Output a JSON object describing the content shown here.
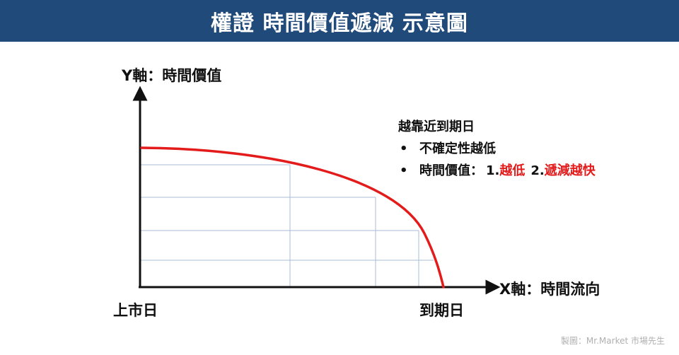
{
  "title": "權證 時間價值遞減 示意圖",
  "axes": {
    "y_label": "Y軸：時間價值",
    "x_label": "X軸：時間流向",
    "start_label": "上市日",
    "end_label": "到期日"
  },
  "note": {
    "heading": "越靠近到期日",
    "bullet1": "不確定性越低",
    "bullet2_prefix": "時間價值：",
    "bullet2_n1": "1.",
    "bullet2_r1": "越低",
    "bullet2_n2": "2.",
    "bullet2_r2": "遞減越快",
    "bullet_symbol": "•"
  },
  "credit": "製圖：Mr.Market 市場先生",
  "colors": {
    "title_bg": "#1f4a7a",
    "curve": "#e31b1b",
    "grid": "#a8bcd6",
    "axis": "#111111"
  }
}
